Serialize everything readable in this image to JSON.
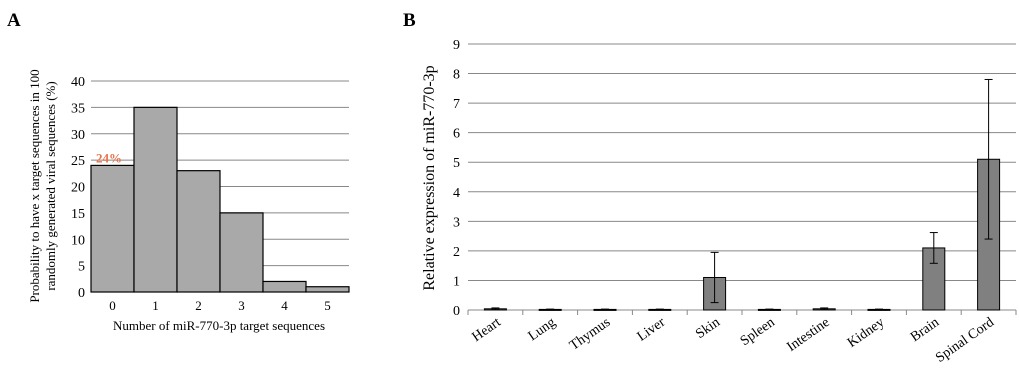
{
  "colors": {
    "bar_a": "#a9a9a9",
    "bar_b": "#808080",
    "grid": "#888888",
    "annotation": "#e8734a"
  },
  "chart_data": [
    {
      "panel": "A",
      "type": "bar",
      "categories": [
        "0",
        "1",
        "2",
        "3",
        "4",
        "5"
      ],
      "values": [
        24,
        35,
        23,
        15,
        2,
        1
      ],
      "xlabel": "Number of miR-770-3p target sequences",
      "ylabel_lines": [
        "Probability to have x target sequences in 100",
        "randomly generated viral sequences (%)"
      ],
      "ylim": [
        0,
        40
      ],
      "yticks": [
        0,
        5,
        10,
        15,
        20,
        25,
        30,
        35,
        40
      ],
      "grid": true,
      "annotation": {
        "category": "0",
        "text": "24%"
      }
    },
    {
      "panel": "B",
      "type": "bar",
      "categories": [
        "Heart",
        "Lung",
        "Thymus",
        "Liver",
        "Skin",
        "Spleen",
        "Intestine",
        "Kidney",
        "Brain",
        "Spinal Cord"
      ],
      "values": [
        0.04,
        0.02,
        0.02,
        0.02,
        1.1,
        0.02,
        0.04,
        0.02,
        2.1,
        5.1
      ],
      "errors": [
        0.03,
        0.01,
        0.01,
        0.01,
        0.85,
        0.01,
        0.03,
        0.01,
        0.52,
        2.7
      ],
      "ylabel": "Relative expression of miR-770-3p",
      "xlabel": "",
      "ylim": [
        0,
        9
      ],
      "yticks": [
        0,
        1,
        2,
        3,
        4,
        5,
        6,
        7,
        8,
        9
      ],
      "grid": true
    }
  ]
}
